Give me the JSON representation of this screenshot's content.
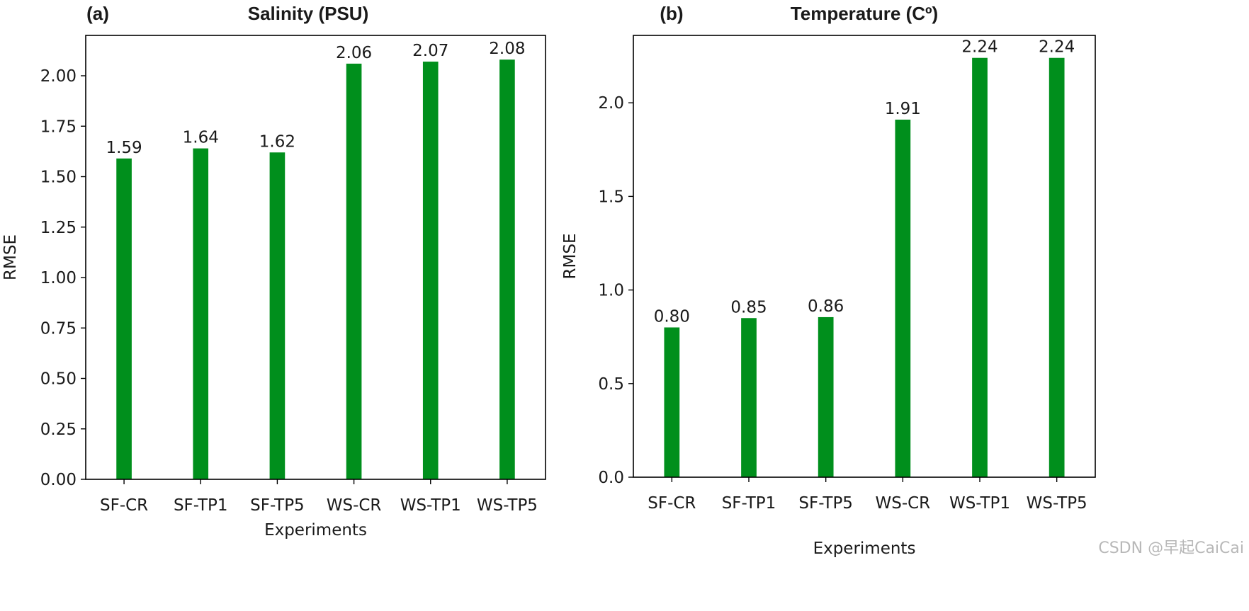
{
  "watermark": "CSDN @早起CaiCai",
  "chart_data": [
    {
      "type": "bar",
      "panel": "(a)",
      "title": "Salinity (PSU)",
      "xlabel": "Experiments",
      "ylabel": "RMSE",
      "categories": [
        "SF-CR",
        "SF-TP1",
        "SF-TP5",
        "WS-CR",
        "WS-TP1",
        "WS-TP5"
      ],
      "values": [
        1.59,
        1.64,
        1.62,
        2.06,
        2.07,
        2.08
      ],
      "data_labels": [
        "1.59",
        "1.64",
        "1.62",
        "2.06",
        "2.07",
        "2.08"
      ],
      "ylim": [
        0,
        2.2
      ],
      "yticks": [
        0.0,
        0.25,
        0.5,
        0.75,
        1.0,
        1.25,
        1.5,
        1.75,
        2.0
      ],
      "ytick_labels": [
        "0.00",
        "0.25",
        "0.50",
        "0.75",
        "1.00",
        "1.25",
        "1.50",
        "1.75",
        "2.00"
      ],
      "bar_color": "#008f1c",
      "grid": false
    },
    {
      "type": "bar",
      "panel": "(b)",
      "title": "Temperature (Cº)",
      "xlabel": "Experiments",
      "ylabel": "RMSE",
      "categories": [
        "SF-CR",
        "SF-TP1",
        "SF-TP5",
        "WS-CR",
        "WS-TP1",
        "WS-TP5"
      ],
      "values": [
        0.8,
        0.85,
        0.855,
        1.91,
        2.24,
        2.24
      ],
      "data_labels": [
        "0.80",
        "0.85",
        "0.86",
        "1.91",
        "2.24",
        "2.24"
      ],
      "ylim": [
        0,
        2.36
      ],
      "yticks": [
        0.0,
        0.5,
        1.0,
        1.5,
        2.0
      ],
      "ytick_labels": [
        "0.0",
        "0.5",
        "1.0",
        "1.5",
        "2.0"
      ],
      "bar_color": "#008f1c",
      "grid": false
    }
  ]
}
